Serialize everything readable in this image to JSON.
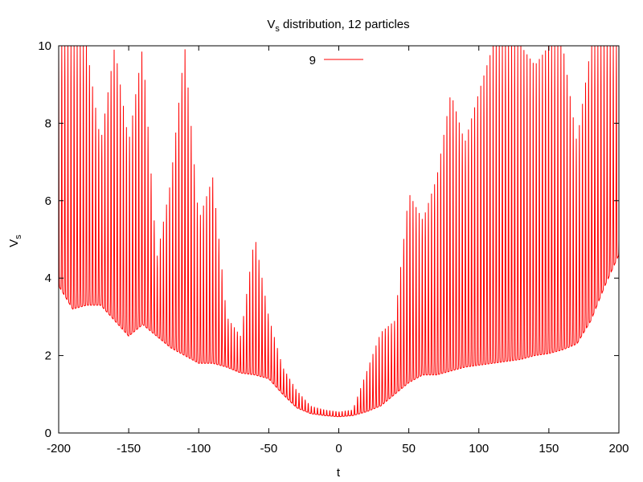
{
  "chart_data": {
    "type": "line",
    "title": "V",
    "title_sub": "s",
    "title_rest": " distribution, 12 particles",
    "xlabel": "t",
    "ylabel": "V",
    "ylabel_sub": "s",
    "xlim": [
      -200,
      200
    ],
    "ylim": [
      0,
      10
    ],
    "xticks": [
      -200,
      -150,
      -100,
      -50,
      0,
      50,
      100,
      150,
      200
    ],
    "yticks": [
      0,
      2,
      4,
      6,
      8,
      10
    ],
    "xtick_labels": [
      "-200",
      "-150",
      "-100",
      "-50",
      "0",
      "50",
      "100",
      "150",
      "200"
    ],
    "ytick_labels": [
      "0",
      "2",
      "4",
      "6",
      "8",
      "10"
    ],
    "grid": false,
    "legend_position": "top-center",
    "series": [
      {
        "name": "9",
        "color": "#ff0000",
        "baseline_x": [
          -200,
          -190,
          -180,
          -170,
          -160,
          -150,
          -140,
          -130,
          -120,
          -110,
          -100,
          -90,
          -80,
          -70,
          -60,
          -50,
          -40,
          -30,
          -20,
          -10,
          0,
          10,
          20,
          30,
          40,
          50,
          60,
          70,
          80,
          90,
          100,
          110,
          120,
          130,
          140,
          150,
          160,
          170,
          180,
          190,
          200
        ],
        "baseline_y": [
          3.8,
          3.2,
          3.3,
          3.3,
          2.9,
          2.5,
          2.8,
          2.5,
          2.2,
          2.0,
          1.8,
          1.8,
          1.7,
          1.55,
          1.5,
          1.4,
          1.0,
          0.65,
          0.5,
          0.45,
          0.42,
          0.45,
          0.55,
          0.7,
          1.0,
          1.3,
          1.5,
          1.5,
          1.6,
          1.7,
          1.75,
          1.8,
          1.85,
          1.9,
          2.0,
          2.05,
          2.15,
          2.3,
          2.9,
          3.8,
          4.6
        ],
        "peak_x": [
          -200,
          -190,
          -180,
          -170,
          -160,
          -150,
          -140,
          -130,
          -120,
          -110,
          -100,
          -90,
          -80,
          -70,
          -60,
          -50,
          -40,
          -30,
          -20,
          -10,
          0,
          10,
          20,
          30,
          40,
          50,
          60,
          70,
          80,
          90,
          100,
          110,
          120,
          130,
          140,
          150,
          160,
          170,
          180,
          190,
          200
        ],
        "peak_y": [
          10,
          10,
          10,
          7.5,
          10,
          7.5,
          10,
          4.5,
          6.5,
          10,
          5.5,
          6.6,
          3.0,
          2.5,
          5.1,
          3.0,
          1.7,
          1.1,
          0.7,
          0.6,
          0.55,
          0.6,
          1.6,
          2.6,
          2.9,
          6.2,
          5.5,
          6.6,
          8.8,
          7.5,
          8.8,
          10,
          10,
          10,
          9.5,
          10,
          10,
          7.5,
          10,
          10,
          10
        ],
        "oscillation_period": 2.2
      }
    ]
  }
}
